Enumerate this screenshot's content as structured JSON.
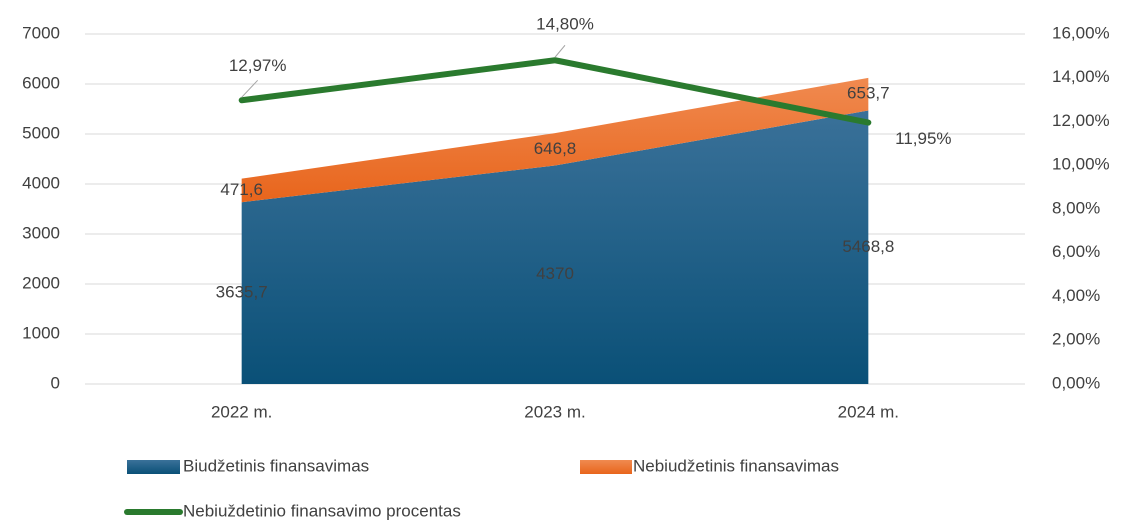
{
  "chart_data": {
    "type": "stacked-area-line",
    "categories": [
      "2022 m.",
      "2023 m.",
      "2024 m."
    ],
    "series": [
      {
        "name": "Biudžetinis finansavimas",
        "color": "#155f8a",
        "values": [
          3635.7,
          4370,
          5468.8
        ],
        "value_labels": [
          "3635,7",
          "4370",
          "5468,8"
        ]
      },
      {
        "name": "Nebiudžetinis finansavimas",
        "color": "#ec6f2c",
        "values": [
          471.6,
          646.8,
          653.7
        ],
        "value_labels": [
          "471,6",
          "646,8",
          "653,7"
        ]
      },
      {
        "name": "Nebiuždetinio finansavimo procentas",
        "color": "#2a7a2e",
        "axis": "y2",
        "values": [
          12.97,
          14.8,
          11.95
        ],
        "value_labels": [
          "12,97%",
          "14,80%",
          "11,95%"
        ]
      }
    ],
    "ylim": [
      0,
      7000
    ],
    "yticks": [
      0,
      1000,
      2000,
      3000,
      4000,
      5000,
      6000,
      7000
    ],
    "y2lim": [
      0,
      16
    ],
    "y2ticks": [
      {
        "value": 0,
        "label": "0,00%"
      },
      {
        "value": 2,
        "label": "2,00%"
      },
      {
        "value": 4,
        "label": "4,00%"
      },
      {
        "value": 6,
        "label": "6,00%"
      },
      {
        "value": 8,
        "label": "8,00%"
      },
      {
        "value": 10,
        "label": "10,00%"
      },
      {
        "value": 12,
        "label": "12,00%"
      },
      {
        "value": 14,
        "label": "14,00%"
      },
      {
        "value": 16,
        "label": "16,00%"
      }
    ],
    "grid": true,
    "legend": "bottom"
  }
}
